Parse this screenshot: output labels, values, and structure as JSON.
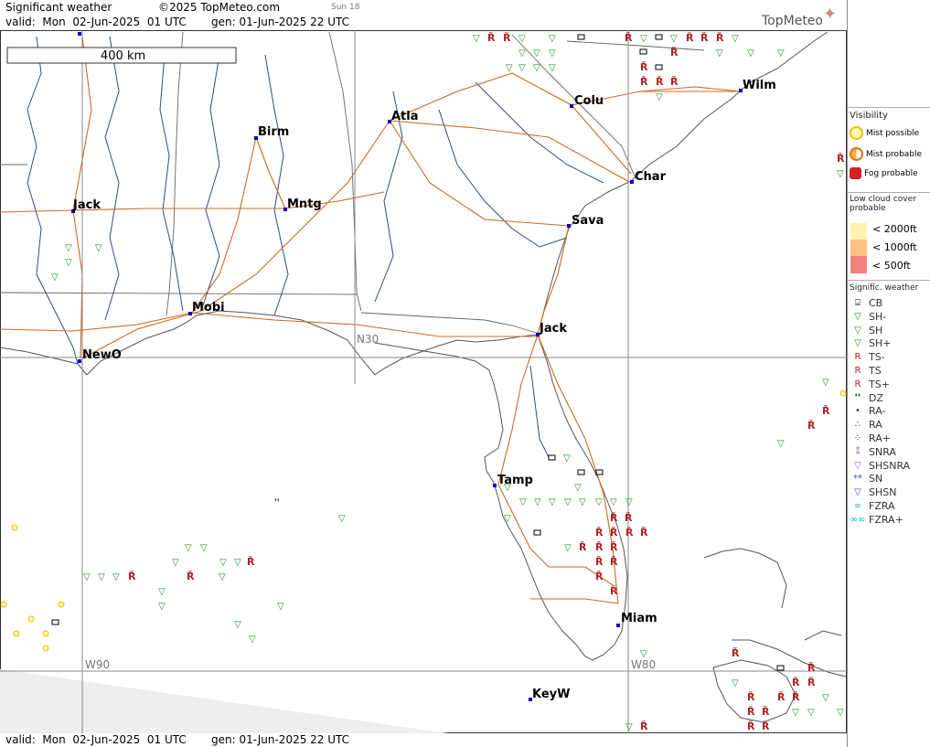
{
  "header": {
    "title": "Significant weather",
    "copyright": "©2025 TopMeteo.com",
    "sun": "Sun 18",
    "valid": "valid:  Mon  02-Jun-2025  01 UTC",
    "gen": "gen: 01-Jun-2025 22 UTC",
    "logo": "TopMeteo"
  },
  "footer": {
    "valid": "valid:  Mon  02-Jun-2025  01 UTC",
    "gen": "gen: 01-Jun-2025 22 UTC"
  },
  "scale": "400 km",
  "grid_labels": {
    "lat": "N30",
    "lon1": "W90",
    "lon2": "W80"
  },
  "cities": [
    "Birm",
    "Atla",
    "Colu",
    "Wilm",
    "Char",
    "Jack",
    "Mntg",
    "Sava",
    "Mobi",
    "Jack",
    "NewO",
    "Tamp",
    "Miam",
    "KeyW"
  ],
  "legend": {
    "visibility_title": "Visibility",
    "visibility": [
      "Mist possible",
      "Mist probable",
      "Fog probable"
    ],
    "cloud_title": "Low cloud cover probable",
    "cloud": [
      "< 2000ft",
      "< 1000ft",
      "<  500ft"
    ],
    "sigwx_title": "Signific. weather",
    "sigwx": [
      "CB",
      "SH-",
      "SH",
      "SH+",
      "TS-",
      "TS",
      "TS+",
      "DZ",
      "RA-",
      "RA",
      "RA+",
      "SNRA",
      "SHSNRA",
      "SN",
      "SHSN",
      "FZRA",
      "FZRA+"
    ]
  },
  "colors": {
    "river": "#2a4d8a",
    "road": "#d2691e",
    "grid": "#888888",
    "cb": "#000000",
    "shower": "#228b22",
    "storm": "#b22222",
    "mist": "#e6c300",
    "snow": "#c050c0",
    "freeze": "#00bcd4"
  }
}
